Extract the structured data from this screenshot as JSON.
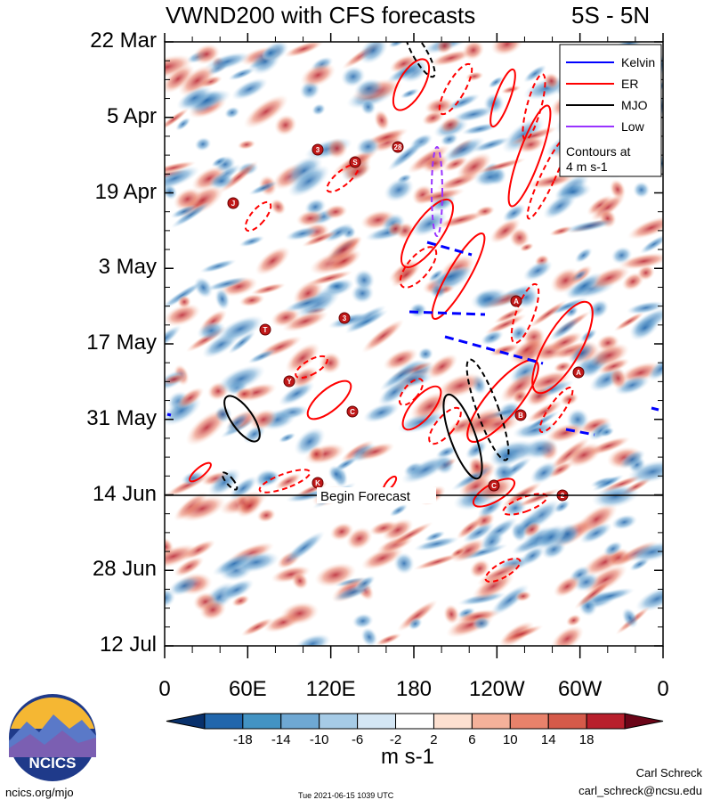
{
  "chart_data": {
    "type": "heatmap",
    "title": "VWND200 with CFS forecasts",
    "title_right": "5S - 5N",
    "x_ticks": [
      "0",
      "60E",
      "120E",
      "180",
      "120W",
      "60W",
      "0"
    ],
    "y_ticks": [
      "22 Mar",
      "5 Apr",
      "19 Apr",
      "3 May",
      "17 May",
      "31 May",
      "14 Jun",
      "28 Jun",
      "12 Jul"
    ],
    "xlim": [
      0,
      360
    ],
    "ylim": [
      "22 Mar",
      "12 Jul"
    ],
    "colorbar": {
      "tick_labels": [
        "-18",
        "-14",
        "-10",
        "-6",
        "-2",
        "2",
        "6",
        "10",
        "14",
        "18"
      ],
      "colors": [
        "#08306b",
        "#2166ac",
        "#4393c3",
        "#6fa8d3",
        "#a6cbe6",
        "#d4e6f4",
        "#ffffff",
        "#fde0d0",
        "#f4b19a",
        "#e8826b",
        "#d55a4a",
        "#b81f2c",
        "#6b0518"
      ]
    },
    "units": "m s-1",
    "legend": {
      "placement": "top-right",
      "entries": [
        {
          "name": "Kelvin",
          "color": "#0000ff"
        },
        {
          "name": "ER",
          "color": "#ff0000"
        },
        {
          "name": "MJO",
          "color": "#000000"
        },
        {
          "name": "Low",
          "color": "#9933ff"
        }
      ],
      "note": "Contours at\n4 m s-1"
    },
    "forecast_line_label": "Begin Forecast",
    "forecast_start": "14 Jun",
    "storm_symbols": [
      "J",
      "3",
      "S",
      "28",
      "T",
      "3",
      "Y",
      "C",
      "K",
      "A",
      "A",
      "B",
      "C",
      "2"
    ]
  },
  "footer": {
    "site": "ncics.org/mjo",
    "timestamp": "Tue 2021-06-15 1039 UTC",
    "author": "Carl Schreck",
    "email": "carl_schreck@ncsu.edu",
    "logo_text": "NCICS"
  }
}
